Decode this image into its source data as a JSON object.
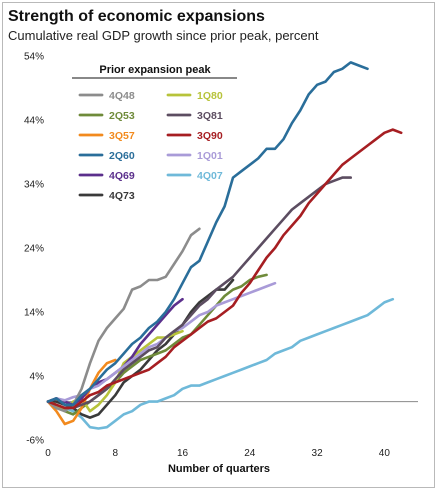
{
  "title": "Strength of economic expansions",
  "subtitle": "Cumulative real GDP growth since prior peak, percent",
  "chart_data": {
    "type": "line",
    "title": "Strength of economic expansions",
    "subtitle": "Cumulative real GDP growth since prior peak, percent",
    "xlabel": "Number of quarters",
    "ylabel": "",
    "xlim": [
      0,
      44
    ],
    "ylim": [
      -6,
      54
    ],
    "xticks": [
      0,
      8,
      16,
      24,
      32,
      40
    ],
    "yticks": [
      54,
      44,
      34,
      24,
      14,
      4,
      -6
    ],
    "ytick_labels": [
      "54%",
      "44%",
      "34%",
      "24%",
      "14%",
      "4%",
      "-6%"
    ],
    "grid": false,
    "legend_title": "Prior expansion peak",
    "legend_position": "top-left",
    "series": [
      {
        "name": "4Q48",
        "color": "#8c8c8c",
        "x": [
          0,
          1,
          2,
          3,
          4,
          5,
          6,
          7,
          8,
          9,
          10,
          11,
          12,
          13,
          14,
          15,
          16,
          17,
          18
        ],
        "y": [
          0,
          -1,
          -1.5,
          -0.5,
          2,
          6,
          9.5,
          11.5,
          13,
          14.5,
          17.5,
          18,
          19,
          19,
          19.5,
          21.5,
          23.5,
          26,
          27
        ]
      },
      {
        "name": "2Q53",
        "color": "#6f8b3a",
        "x": [
          0,
          1,
          2,
          3,
          4,
          5,
          6,
          7,
          8,
          9,
          10,
          11,
          12,
          13,
          14,
          15,
          16,
          17,
          18,
          19,
          20,
          21,
          22,
          23,
          24,
          25,
          26
        ],
        "y": [
          0,
          -0.5,
          -1.5,
          -2,
          -1,
          0,
          1,
          2,
          3,
          4.5,
          5.5,
          6.5,
          7,
          7.5,
          8,
          9,
          10,
          10.5,
          12,
          13.5,
          15,
          16.5,
          17.5,
          18,
          19,
          19.5,
          19.8
        ]
      },
      {
        "name": "3Q57",
        "color": "#f28a1e",
        "x": [
          0,
          1,
          2,
          3,
          4,
          5,
          6,
          7,
          8
        ],
        "y": [
          0,
          -1.5,
          -3.5,
          -3,
          -1,
          2,
          4.5,
          6,
          6.5
        ]
      },
      {
        "name": "2Q60",
        "color": "#2a6e9a",
        "x": [
          0,
          1,
          2,
          3,
          4,
          5,
          6,
          7,
          8,
          9,
          10,
          11,
          12,
          13,
          14,
          15,
          16,
          17,
          18,
          19,
          20,
          21,
          22,
          23,
          24,
          25,
          26,
          27,
          28,
          29,
          30,
          31,
          32,
          33,
          34,
          35,
          36,
          37,
          38
        ],
        "y": [
          0,
          0.5,
          -0.5,
          -0.5,
          1,
          2,
          3.5,
          5,
          6,
          7.5,
          9,
          10,
          11.5,
          12.5,
          14,
          16,
          18.5,
          21,
          22,
          25,
          28,
          30.5,
          35,
          36,
          37,
          38,
          39.5,
          39.5,
          41,
          43.5,
          45.5,
          48,
          49.5,
          50,
          51.5,
          52,
          53,
          52.5,
          52
        ]
      },
      {
        "name": "4Q69",
        "color": "#5b2f8c",
        "x": [
          0,
          1,
          2,
          3,
          4,
          5,
          6,
          7,
          8,
          9,
          10,
          11,
          12,
          13,
          14,
          15,
          16
        ],
        "y": [
          0,
          0.5,
          0,
          -0.5,
          0.5,
          2,
          3,
          3.5,
          4.5,
          5.5,
          7,
          9,
          10.5,
          12,
          13.5,
          15,
          16
        ]
      },
      {
        "name": "4Q73",
        "color": "#3a3a3a",
        "x": [
          0,
          1,
          2,
          3,
          4,
          5,
          6,
          7,
          8,
          9,
          10,
          11,
          12,
          13,
          14,
          15,
          16,
          17,
          18,
          19,
          20,
          21,
          22
        ],
        "y": [
          0,
          0,
          -0.5,
          -1,
          -2,
          -2.5,
          -2,
          -0.5,
          1,
          3,
          4,
          5,
          6.5,
          8,
          9,
          10.5,
          12,
          14,
          15.5,
          16.5,
          17.5,
          17.5,
          19
        ]
      },
      {
        "name": "1Q80",
        "color": "#b7c33a",
        "x": [
          0,
          1,
          2,
          3,
          4,
          5,
          6,
          7,
          8,
          9,
          10,
          11,
          12,
          13,
          14,
          15,
          16
        ],
        "y": [
          0,
          -0.5,
          -1.5,
          0,
          0.5,
          -1.5,
          -0.5,
          1,
          3,
          6,
          7,
          8,
          9,
          10,
          10,
          10.5,
          11
        ]
      },
      {
        "name": "3Q81",
        "color": "#5c4d61",
        "x": [
          0,
          1,
          2,
          3,
          4,
          5,
          6,
          7,
          8,
          9,
          10,
          11,
          12,
          13,
          14,
          15,
          16,
          17,
          18,
          19,
          20,
          21,
          22,
          23,
          24,
          25,
          26,
          27,
          28,
          29,
          30,
          31,
          32,
          33,
          34,
          35,
          36
        ],
        "y": [
          0,
          0.5,
          -0.5,
          -1,
          -0.5,
          0,
          1,
          2,
          3.5,
          5,
          6,
          7,
          8,
          8.5,
          10,
          11,
          12,
          13.5,
          15,
          16,
          17.5,
          18.5,
          19.5,
          21,
          22.5,
          24,
          25.5,
          27,
          28.5,
          30,
          31,
          32,
          33,
          34,
          34.5,
          35,
          35
        ]
      },
      {
        "name": "3Q90",
        "color": "#a61e22",
        "x": [
          0,
          1,
          2,
          3,
          4,
          5,
          6,
          7,
          8,
          9,
          10,
          11,
          12,
          13,
          14,
          15,
          16,
          17,
          18,
          19,
          20,
          21,
          22,
          23,
          24,
          25,
          26,
          27,
          28,
          29,
          30,
          31,
          32,
          33,
          34,
          35,
          36,
          37,
          38,
          39,
          40,
          41,
          42
        ],
        "y": [
          0,
          -0.5,
          -1,
          -1,
          0,
          1,
          1.5,
          2.5,
          3,
          3.5,
          4,
          4.5,
          5,
          6,
          7,
          8.5,
          9.5,
          10.5,
          11.5,
          12.5,
          13,
          14,
          15,
          17,
          18.5,
          20.5,
          22.5,
          24,
          26,
          27.5,
          29,
          31,
          32.5,
          34,
          35.5,
          37,
          38,
          39,
          40,
          41,
          42,
          42.5,
          42
        ]
      },
      {
        "name": "1Q01",
        "color": "#a99bd8",
        "x": [
          0,
          1,
          2,
          3,
          4,
          5,
          6,
          7,
          8,
          9,
          10,
          11,
          12,
          13,
          14,
          15,
          16,
          17,
          18,
          19,
          20,
          21,
          22,
          23,
          24,
          25,
          26,
          27
        ],
        "y": [
          0,
          0.5,
          0.2,
          0.7,
          1,
          2,
          2.5,
          3.5,
          4.5,
          5.5,
          6.5,
          7.5,
          8.5,
          9,
          10,
          11,
          11.5,
          12.5,
          13.5,
          14,
          15,
          15.5,
          16,
          16.5,
          17,
          17.5,
          18,
          18.5
        ]
      },
      {
        "name": "4Q07",
        "color": "#6fb9d9",
        "x": [
          0,
          1,
          2,
          3,
          4,
          5,
          6,
          7,
          8,
          9,
          10,
          11,
          12,
          13,
          14,
          15,
          16,
          17,
          18,
          19,
          20,
          21,
          22,
          23,
          24,
          25,
          26,
          27,
          28,
          29,
          30,
          31,
          32,
          33,
          34,
          35,
          36,
          37,
          38,
          39,
          40,
          41
        ],
        "y": [
          0,
          -0.5,
          -1,
          -1.5,
          -2.5,
          -4,
          -4.2,
          -4,
          -3,
          -2,
          -1.5,
          -0.5,
          0,
          0,
          0.5,
          1,
          2,
          2.5,
          2.5,
          3,
          3.5,
          4,
          4.5,
          5,
          5.5,
          6,
          6.5,
          7.5,
          8,
          8.5,
          9.5,
          10,
          10.5,
          11,
          11.5,
          12,
          12.5,
          13,
          13.5,
          14.5,
          15.5,
          16
        ]
      }
    ]
  }
}
